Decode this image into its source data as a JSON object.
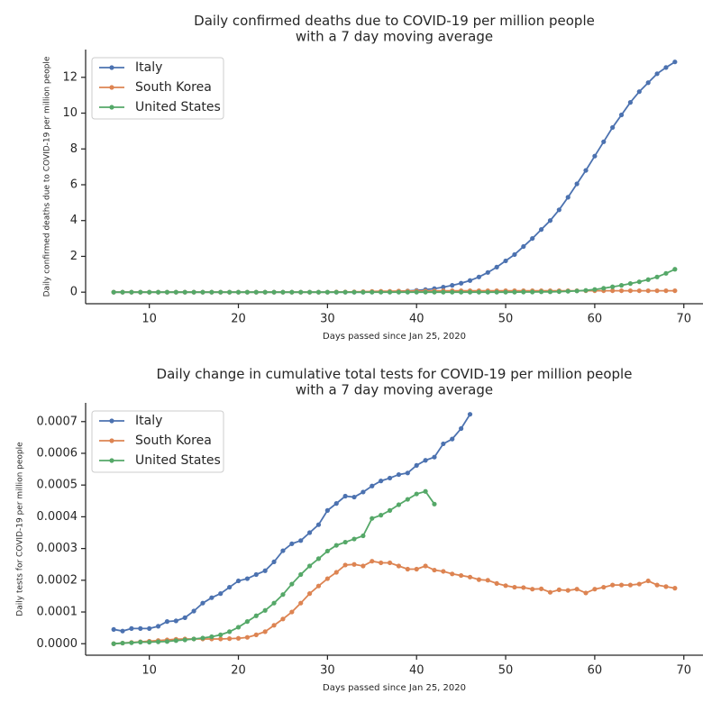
{
  "chart_data": [
    {
      "type": "line",
      "title": "Daily confirmed deaths due to COVID-19 per million people\nwith a 7 day moving average",
      "x_label": "Days passed since Jan 25, 2020",
      "y_label": "Daily confirmed deaths due to COVID-19 per million people",
      "xlim": [
        2.85,
        72.15
      ],
      "ylim": [
        -0.645,
        13.55
      ],
      "xticks": [
        10,
        20,
        30,
        40,
        50,
        60,
        70
      ],
      "yticks": [
        0,
        2,
        4,
        6,
        8,
        10,
        12
      ],
      "legend": "upper left",
      "series": [
        {
          "name": "Italy",
          "color": "#4c72b0",
          "x": [
            6,
            7,
            8,
            9,
            10,
            11,
            12,
            13,
            14,
            15,
            16,
            17,
            18,
            19,
            20,
            21,
            22,
            23,
            24,
            25,
            26,
            27,
            28,
            29,
            30,
            31,
            32,
            33,
            34,
            35,
            36,
            37,
            38,
            39,
            40,
            41,
            42,
            43,
            44,
            45,
            46,
            47,
            48,
            49,
            50,
            51,
            52,
            53,
            54,
            55,
            56,
            57,
            58,
            59,
            60,
            61,
            62,
            63,
            64,
            65,
            66,
            67,
            68,
            69
          ],
          "values": [
            0,
            0,
            0,
            0,
            0,
            0,
            0,
            0,
            0,
            0,
            0,
            0,
            0,
            0,
            0,
            0,
            0,
            0,
            0,
            0,
            0,
            0,
            0,
            0,
            0,
            0,
            0,
            0,
            0,
            0.01,
            0.02,
            0.03,
            0.05,
            0.07,
            0.1,
            0.14,
            0.2,
            0.28,
            0.38,
            0.5,
            0.65,
            0.85,
            1.1,
            1.4,
            1.75,
            2.1,
            2.55,
            3.0,
            3.5,
            4.0,
            4.6,
            5.3,
            6.05,
            6.8,
            7.6,
            8.4,
            9.2,
            9.9,
            10.6,
            11.2,
            11.7,
            12.2,
            12.55,
            12.86
          ]
        },
        {
          "name": "South Korea",
          "color": "#dd8452",
          "x": [
            6,
            7,
            8,
            9,
            10,
            11,
            12,
            13,
            14,
            15,
            16,
            17,
            18,
            19,
            20,
            21,
            22,
            23,
            24,
            25,
            26,
            27,
            28,
            29,
            30,
            31,
            32,
            33,
            34,
            35,
            36,
            37,
            38,
            39,
            40,
            41,
            42,
            43,
            44,
            45,
            46,
            47,
            48,
            49,
            50,
            51,
            52,
            53,
            54,
            55,
            56,
            57,
            58,
            59,
            60,
            61,
            62,
            63,
            64,
            65,
            66,
            67,
            68,
            69
          ],
          "values": [
            0,
            0,
            0,
            0,
            0,
            0,
            0,
            0,
            0,
            0,
            0,
            0,
            0,
            0,
            0,
            0,
            0,
            0,
            0,
            0,
            0,
            0,
            0,
            0,
            0,
            0.01,
            0.01,
            0.02,
            0.03,
            0.04,
            0.05,
            0.05,
            0.06,
            0.06,
            0.07,
            0.07,
            0.07,
            0.08,
            0.08,
            0.08,
            0.08,
            0.08,
            0.08,
            0.08,
            0.08,
            0.08,
            0.08,
            0.08,
            0.08,
            0.08,
            0.08,
            0.08,
            0.08,
            0.08,
            0.08,
            0.08,
            0.08,
            0.08,
            0.08,
            0.08,
            0.08,
            0.08,
            0.08,
            0.08
          ]
        },
        {
          "name": "United States",
          "color": "#55a868",
          "x": [
            6,
            7,
            8,
            9,
            10,
            11,
            12,
            13,
            14,
            15,
            16,
            17,
            18,
            19,
            20,
            21,
            22,
            23,
            24,
            25,
            26,
            27,
            28,
            29,
            30,
            31,
            32,
            33,
            34,
            35,
            36,
            37,
            38,
            39,
            40,
            41,
            42,
            43,
            44,
            45,
            46,
            47,
            48,
            49,
            50,
            51,
            52,
            53,
            54,
            55,
            56,
            57,
            58,
            59,
            60,
            61,
            62,
            63,
            64,
            65,
            66,
            67,
            68,
            69
          ],
          "values": [
            0,
            0,
            0,
            0,
            0,
            0,
            0,
            0,
            0,
            0,
            0,
            0,
            0,
            0,
            0,
            0,
            0,
            0,
            0,
            0,
            0,
            0,
            0,
            0,
            0,
            0,
            0,
            0,
            0,
            0,
            0,
            0,
            0,
            0,
            0,
            0,
            0,
            0,
            0,
            0,
            0,
            0,
            0,
            0,
            0,
            0,
            0.01,
            0.01,
            0.02,
            0.02,
            0.03,
            0.05,
            0.07,
            0.1,
            0.15,
            0.22,
            0.3,
            0.38,
            0.48,
            0.58,
            0.7,
            0.85,
            1.05,
            1.28
          ]
        }
      ]
    },
    {
      "type": "line",
      "title": "Daily change in cumulative total tests for COVID-19 per million people\nwith a 7 day moving average",
      "x_label": "Days passed since Jan 25, 2020",
      "y_label": "Daily tests for COVID-19 per million people",
      "xlim": [
        2.85,
        72.15
      ],
      "ylim": [
        -3.62e-05,
        0.000759
      ],
      "xticks": [
        10,
        20,
        30,
        40,
        50,
        60,
        70
      ],
      "yticks": [
        {
          "value": 0,
          "label": "0.0000"
        },
        {
          "value": 0.0001,
          "label": "0.0001"
        },
        {
          "value": 0.0002,
          "label": "0.0002"
        },
        {
          "value": 0.0003,
          "label": "0.0003"
        },
        {
          "value": 0.0004,
          "label": "0.0004"
        },
        {
          "value": 0.0005,
          "label": "0.0005"
        },
        {
          "value": 0.0006,
          "label": "0.0006"
        },
        {
          "value": 0.0007,
          "label": "0.0007"
        }
      ],
      "legend": "upper left",
      "series": [
        {
          "name": "Italy",
          "color": "#4c72b0",
          "x": [
            6,
            7,
            8,
            9,
            10,
            11,
            12,
            13,
            14,
            15,
            16,
            17,
            18,
            19,
            20,
            21,
            22,
            23,
            24,
            25,
            26,
            27,
            28,
            29,
            30,
            31,
            32,
            33,
            34,
            35,
            36,
            37,
            38,
            39,
            40,
            41,
            42,
            43,
            44,
            45,
            46
          ],
          "values": [
            4.5e-05,
            4e-05,
            4.8e-05,
            4.8e-05,
            4.8e-05,
            5.5e-05,
            7e-05,
            7.2e-05,
            8.2e-05,
            0.000103,
            0.000128,
            0.000145,
            0.000158,
            0.000178,
            0.000198,
            0.000205,
            0.000218,
            0.00023,
            0.000258,
            0.000293,
            0.000315,
            0.000325,
            0.00035,
            0.000375,
            0.00042,
            0.000442,
            0.000465,
            0.000462,
            0.000478,
            0.000497,
            0.000513,
            0.000522,
            0.000533,
            0.000538,
            0.000562,
            0.000578,
            0.000588,
            0.00063,
            0.000645,
            0.000678,
            0.000723
          ]
        },
        {
          "name": "South Korea",
          "color": "#dd8452",
          "x": [
            6,
            7,
            8,
            9,
            10,
            11,
            12,
            13,
            14,
            15,
            16,
            17,
            18,
            19,
            20,
            21,
            22,
            23,
            24,
            25,
            26,
            27,
            28,
            29,
            30,
            31,
            32,
            33,
            34,
            35,
            36,
            37,
            38,
            39,
            40,
            41,
            42,
            43,
            44,
            45,
            46,
            47,
            48,
            49,
            50,
            51,
            52,
            53,
            54,
            55,
            56,
            57,
            58,
            59,
            60,
            61,
            62,
            63,
            64,
            65,
            66,
            67,
            68,
            69
          ],
          "values": [
            0,
            2e-06,
            4e-06,
            6e-06,
            8e-06,
            1e-05,
            1.2e-05,
            1.4e-05,
            1.5e-05,
            1.5e-05,
            1.5e-05,
            1.5e-05,
            1.5e-05,
            1.6e-05,
            1.7e-05,
            2e-05,
            2.8e-05,
            3.8e-05,
            5.8e-05,
            7.8e-05,
            0.0001,
            0.000128,
            0.000158,
            0.000182,
            0.000205,
            0.000225,
            0.000248,
            0.00025,
            0.000245,
            0.00026,
            0.000255,
            0.000255,
            0.000245,
            0.000235,
            0.000235,
            0.000245,
            0.000232,
            0.000228,
            0.00022,
            0.000215,
            0.00021,
            0.000202,
            0.0002,
            0.00019,
            0.000183,
            0.000178,
            0.000177,
            0.000172,
            0.000173,
            0.000162,
            0.00017,
            0.000168,
            0.000172,
            0.00016,
            0.000172,
            0.000178,
            0.000185,
            0.000185,
            0.000185,
            0.000188,
            0.000198,
            0.000185,
            0.00018,
            0.000175
          ]
        },
        {
          "name": "United States",
          "color": "#55a868",
          "x": [
            6,
            7,
            8,
            9,
            10,
            11,
            12,
            13,
            14,
            15,
            16,
            17,
            18,
            19,
            20,
            21,
            22,
            23,
            24,
            25,
            26,
            27,
            28,
            29,
            30,
            31,
            32,
            33,
            34,
            35,
            36,
            37,
            38,
            39,
            40,
            41,
            42
          ],
          "values": [
            0,
            2e-06,
            3e-06,
            5e-06,
            5e-06,
            6e-06,
            7e-06,
            1e-05,
            1.2e-05,
            1.5e-05,
            1.8e-05,
            2.2e-05,
            2.8e-05,
            3.8e-05,
            5.2e-05,
            7e-05,
            8.8e-05,
            0.000105,
            0.000128,
            0.000155,
            0.000188,
            0.000218,
            0.000245,
            0.000268,
            0.000292,
            0.00031,
            0.00032,
            0.00033,
            0.00034,
            0.000395,
            0.000405,
            0.00042,
            0.000438,
            0.000455,
            0.000472,
            0.00048,
            0.00044
          ]
        }
      ]
    }
  ]
}
